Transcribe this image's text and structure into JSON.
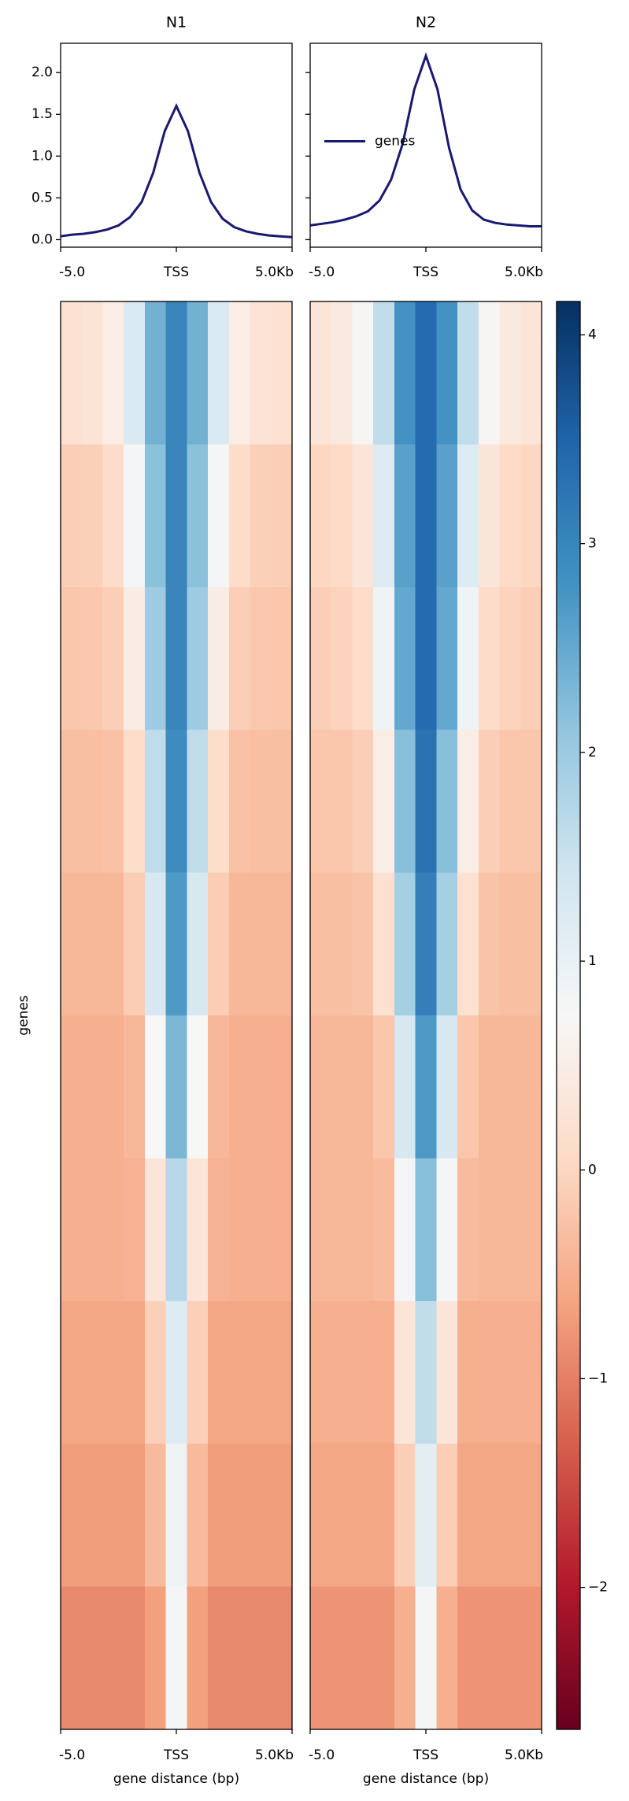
{
  "chart_data": {
    "type": "profile_heatmap",
    "x": [
      -5000,
      -4500,
      -4000,
      -3500,
      -3000,
      -2500,
      -2000,
      -1500,
      -1000,
      -500,
      0,
      500,
      1000,
      1500,
      2000,
      2500,
      3000,
      3500,
      4000,
      4500,
      5000
    ],
    "xlim": [
      -5000,
      5000
    ],
    "xticks": [
      {
        "value": -5000,
        "label": "-5.0"
      },
      {
        "value": 0,
        "label": "TSS"
      },
      {
        "value": 5000,
        "label": "5.0Kb"
      }
    ],
    "ylim": [
      -0.09,
      2.35
    ],
    "yticks": [
      {
        "value": 0,
        "label": "0.0"
      },
      0.5,
      {
        "value": 1,
        "label": "1.0"
      },
      1.5,
      {
        "value": 2,
        "label": "2.0"
      }
    ],
    "xlabel": "gene distance (bp)",
    "ylabel": "genes",
    "panels": [
      {
        "title": "N1",
        "series": [
          {
            "name": "genes",
            "color": "#191970",
            "values": [
              0.04,
              0.06,
              0.07,
              0.09,
              0.12,
              0.17,
              0.27,
              0.45,
              0.8,
              1.3,
              1.6,
              1.3,
              0.8,
              0.45,
              0.25,
              0.15,
              0.1,
              0.07,
              0.05,
              0.04,
              0.03
            ]
          }
        ],
        "z": [
          [
            0.2,
            0.25,
            0.49,
            1.24,
            2.38,
            3.0,
            2.38,
            1.24,
            0.49,
            0.25,
            0.2
          ],
          [
            -0.1,
            -0.08,
            0.09,
            0.8,
            2.16,
            3.0,
            2.16,
            0.8,
            0.09,
            -0.08,
            -0.1
          ],
          [
            -0.2,
            -0.19,
            -0.1,
            0.47,
            1.98,
            3.0,
            1.98,
            0.47,
            -0.1,
            -0.19,
            -0.2
          ],
          [
            -0.3,
            -0.3,
            -0.27,
            0.12,
            1.62,
            2.9,
            1.62,
            0.12,
            -0.27,
            -0.3,
            -0.3
          ],
          [
            -0.4,
            -0.4,
            -0.39,
            -0.12,
            1.31,
            2.7,
            1.31,
            -0.12,
            -0.39,
            -0.4,
            -0.4
          ],
          [
            -0.5,
            -0.5,
            -0.5,
            -0.4,
            0.73,
            2.3,
            0.73,
            -0.4,
            -0.5,
            -0.5,
            -0.5
          ],
          [
            -0.5,
            -0.5,
            -0.5,
            -0.46,
            0.31,
            1.7,
            0.31,
            -0.46,
            -0.5,
            -0.5,
            -0.5
          ],
          [
            -0.6,
            -0.6,
            -0.6,
            -0.6,
            -0.08,
            1.2,
            -0.08,
            -0.6,
            -0.6,
            -0.6,
            -0.6
          ],
          [
            -0.7,
            -0.7,
            -0.7,
            -0.7,
            -0.36,
            0.9,
            -0.36,
            -0.7,
            -0.7,
            -0.7,
            -0.7
          ],
          [
            -0.9,
            -0.9,
            -0.9,
            -0.9,
            -0.68,
            0.8,
            -0.68,
            -0.9,
            -0.9,
            -0.9,
            -0.9
          ]
        ]
      },
      {
        "title": "N2",
        "legend": "center left",
        "series": [
          {
            "name": "genes",
            "color": "#191970",
            "values": [
              0.17,
              0.19,
              0.21,
              0.24,
              0.28,
              0.34,
              0.47,
              0.72,
              1.15,
              1.8,
              2.2,
              1.8,
              1.1,
              0.6,
              0.35,
              0.24,
              0.2,
              0.18,
              0.17,
              0.16,
              0.16
            ]
          }
        ],
        "z": [
          [
            0.3,
            0.4,
            0.7,
            1.6,
            2.8,
            3.4,
            2.8,
            1.6,
            0.7,
            0.4,
            0.3
          ],
          [
            0.0,
            0.05,
            0.3,
            1.2,
            2.6,
            3.4,
            2.6,
            1.2,
            0.3,
            0.05,
            0.0
          ],
          [
            -0.1,
            -0.05,
            0.1,
            0.9,
            2.5,
            3.4,
            2.5,
            0.9,
            0.1,
            -0.05,
            -0.1
          ],
          [
            -0.2,
            -0.2,
            -0.1,
            0.5,
            2.2,
            3.3,
            2.2,
            0.5,
            -0.1,
            -0.2,
            -0.2
          ],
          [
            -0.3,
            -0.3,
            -0.25,
            0.2,
            1.9,
            3.1,
            1.9,
            0.2,
            -0.25,
            -0.3,
            -0.3
          ],
          [
            -0.4,
            -0.4,
            -0.4,
            -0.2,
            1.3,
            2.7,
            1.3,
            -0.2,
            -0.4,
            -0.4,
            -0.4
          ],
          [
            -0.4,
            -0.4,
            -0.4,
            -0.35,
            0.8,
            2.2,
            0.8,
            -0.35,
            -0.4,
            -0.4,
            -0.4
          ],
          [
            -0.5,
            -0.5,
            -0.5,
            -0.5,
            0.3,
            1.6,
            0.3,
            -0.5,
            -0.5,
            -0.5,
            -0.5
          ],
          [
            -0.6,
            -0.6,
            -0.6,
            -0.6,
            -0.1,
            1.1,
            -0.1,
            -0.6,
            -0.6,
            -0.6,
            -0.6
          ],
          [
            -0.8,
            -0.8,
            -0.8,
            -0.8,
            -0.5,
            0.8,
            -0.5,
            -0.8,
            -0.8,
            -0.8,
            -0.8
          ]
        ]
      }
    ],
    "zlim": [
      -2.68,
      4.16
    ],
    "zticks": [
      {
        "value": -2,
        "label": "−2"
      },
      {
        "value": -1,
        "label": "−1"
      },
      0,
      1,
      2,
      3,
      4
    ],
    "colormap": [
      "#67001f",
      "#b2182b",
      "#d6604d",
      "#f4a582",
      "#fddbc7",
      "#f7f7f7",
      "#d1e5f0",
      "#92c5de",
      "#4393c3",
      "#2166ac",
      "#053061"
    ]
  }
}
